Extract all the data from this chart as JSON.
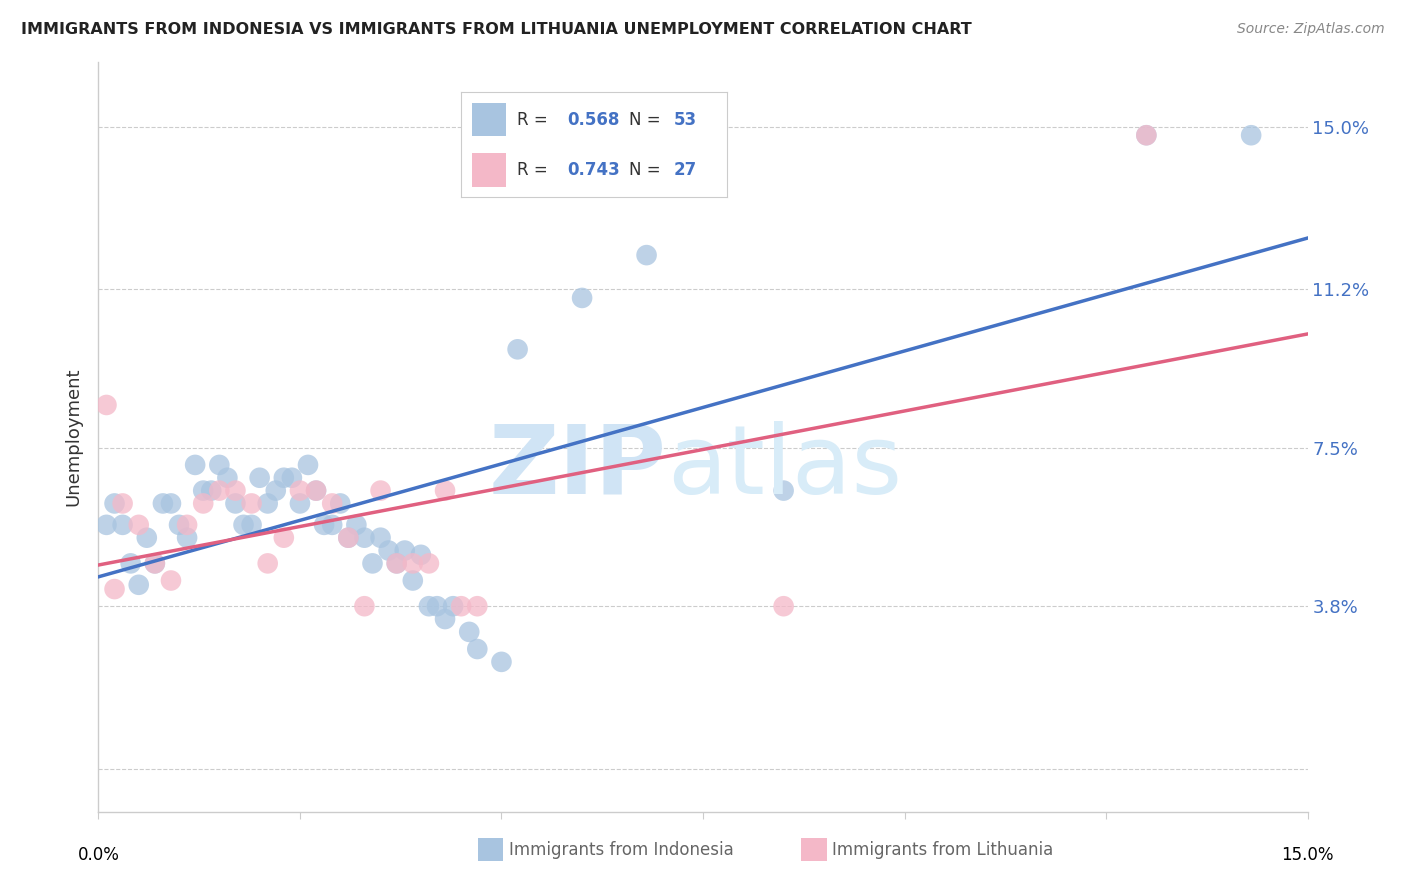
{
  "title": "IMMIGRANTS FROM INDONESIA VS IMMIGRANTS FROM LITHUANIA UNEMPLOYMENT CORRELATION CHART",
  "source": "Source: ZipAtlas.com",
  "ylabel": "Unemployment",
  "ytick_labels": [
    "",
    "3.8%",
    "7.5%",
    "11.2%",
    "15.0%"
  ],
  "ytick_vals": [
    0.0,
    3.8,
    7.5,
    11.2,
    15.0
  ],
  "xlim": [
    0.0,
    15.0
  ],
  "ylim": [
    -1.0,
    16.5
  ],
  "legend_blue_r": "0.568",
  "legend_blue_n": "53",
  "legend_pink_r": "0.743",
  "legend_pink_n": "27",
  "blue_color": "#a8c4e0",
  "pink_color": "#f4b8c8",
  "blue_line_color": "#4472c4",
  "pink_line_color": "#e06080",
  "blue_scatter": [
    [
      0.3,
      5.7
    ],
    [
      0.5,
      4.3
    ],
    [
      0.8,
      6.2
    ],
    [
      1.0,
      5.7
    ],
    [
      1.2,
      7.1
    ],
    [
      1.3,
      6.5
    ],
    [
      1.5,
      7.1
    ],
    [
      1.6,
      6.8
    ],
    [
      1.7,
      6.2
    ],
    [
      1.8,
      5.7
    ],
    [
      1.9,
      5.7
    ],
    [
      2.0,
      6.8
    ],
    [
      2.1,
      6.2
    ],
    [
      2.2,
      6.5
    ],
    [
      2.3,
      6.8
    ],
    [
      2.4,
      6.8
    ],
    [
      2.5,
      6.2
    ],
    [
      2.6,
      7.1
    ],
    [
      2.7,
      6.5
    ],
    [
      2.8,
      5.7
    ],
    [
      2.9,
      5.7
    ],
    [
      3.0,
      6.2
    ],
    [
      3.1,
      5.4
    ],
    [
      3.2,
      5.7
    ],
    [
      3.4,
      4.8
    ],
    [
      3.5,
      5.4
    ],
    [
      3.6,
      5.1
    ],
    [
      3.8,
      5.1
    ],
    [
      4.0,
      5.0
    ],
    [
      4.2,
      3.8
    ],
    [
      4.4,
      3.8
    ],
    [
      4.7,
      2.8
    ],
    [
      5.0,
      2.5
    ],
    [
      0.1,
      5.7
    ],
    [
      0.2,
      6.2
    ],
    [
      0.4,
      4.8
    ],
    [
      0.6,
      5.4
    ],
    [
      0.7,
      4.8
    ],
    [
      0.9,
      6.2
    ],
    [
      1.1,
      5.4
    ],
    [
      1.4,
      6.5
    ],
    [
      3.3,
      5.4
    ],
    [
      3.7,
      4.8
    ],
    [
      3.9,
      4.4
    ],
    [
      4.1,
      3.8
    ],
    [
      4.3,
      3.5
    ],
    [
      4.6,
      3.2
    ],
    [
      5.2,
      9.8
    ],
    [
      6.0,
      11.0
    ],
    [
      6.8,
      12.0
    ],
    [
      8.5,
      6.5
    ],
    [
      13.0,
      14.8
    ],
    [
      14.3,
      14.8
    ]
  ],
  "pink_scatter": [
    [
      0.1,
      8.5
    ],
    [
      0.3,
      6.2
    ],
    [
      0.5,
      5.7
    ],
    [
      0.7,
      4.8
    ],
    [
      0.9,
      4.4
    ],
    [
      1.1,
      5.7
    ],
    [
      1.3,
      6.2
    ],
    [
      1.5,
      6.5
    ],
    [
      1.7,
      6.5
    ],
    [
      1.9,
      6.2
    ],
    [
      2.1,
      4.8
    ],
    [
      2.3,
      5.4
    ],
    [
      2.5,
      6.5
    ],
    [
      2.7,
      6.5
    ],
    [
      2.9,
      6.2
    ],
    [
      3.1,
      5.4
    ],
    [
      3.3,
      3.8
    ],
    [
      3.5,
      6.5
    ],
    [
      3.7,
      4.8
    ],
    [
      3.9,
      4.8
    ],
    [
      4.1,
      4.8
    ],
    [
      4.3,
      6.5
    ],
    [
      4.5,
      3.8
    ],
    [
      4.7,
      3.8
    ],
    [
      8.5,
      3.8
    ],
    [
      13.0,
      14.8
    ],
    [
      0.2,
      4.2
    ]
  ]
}
